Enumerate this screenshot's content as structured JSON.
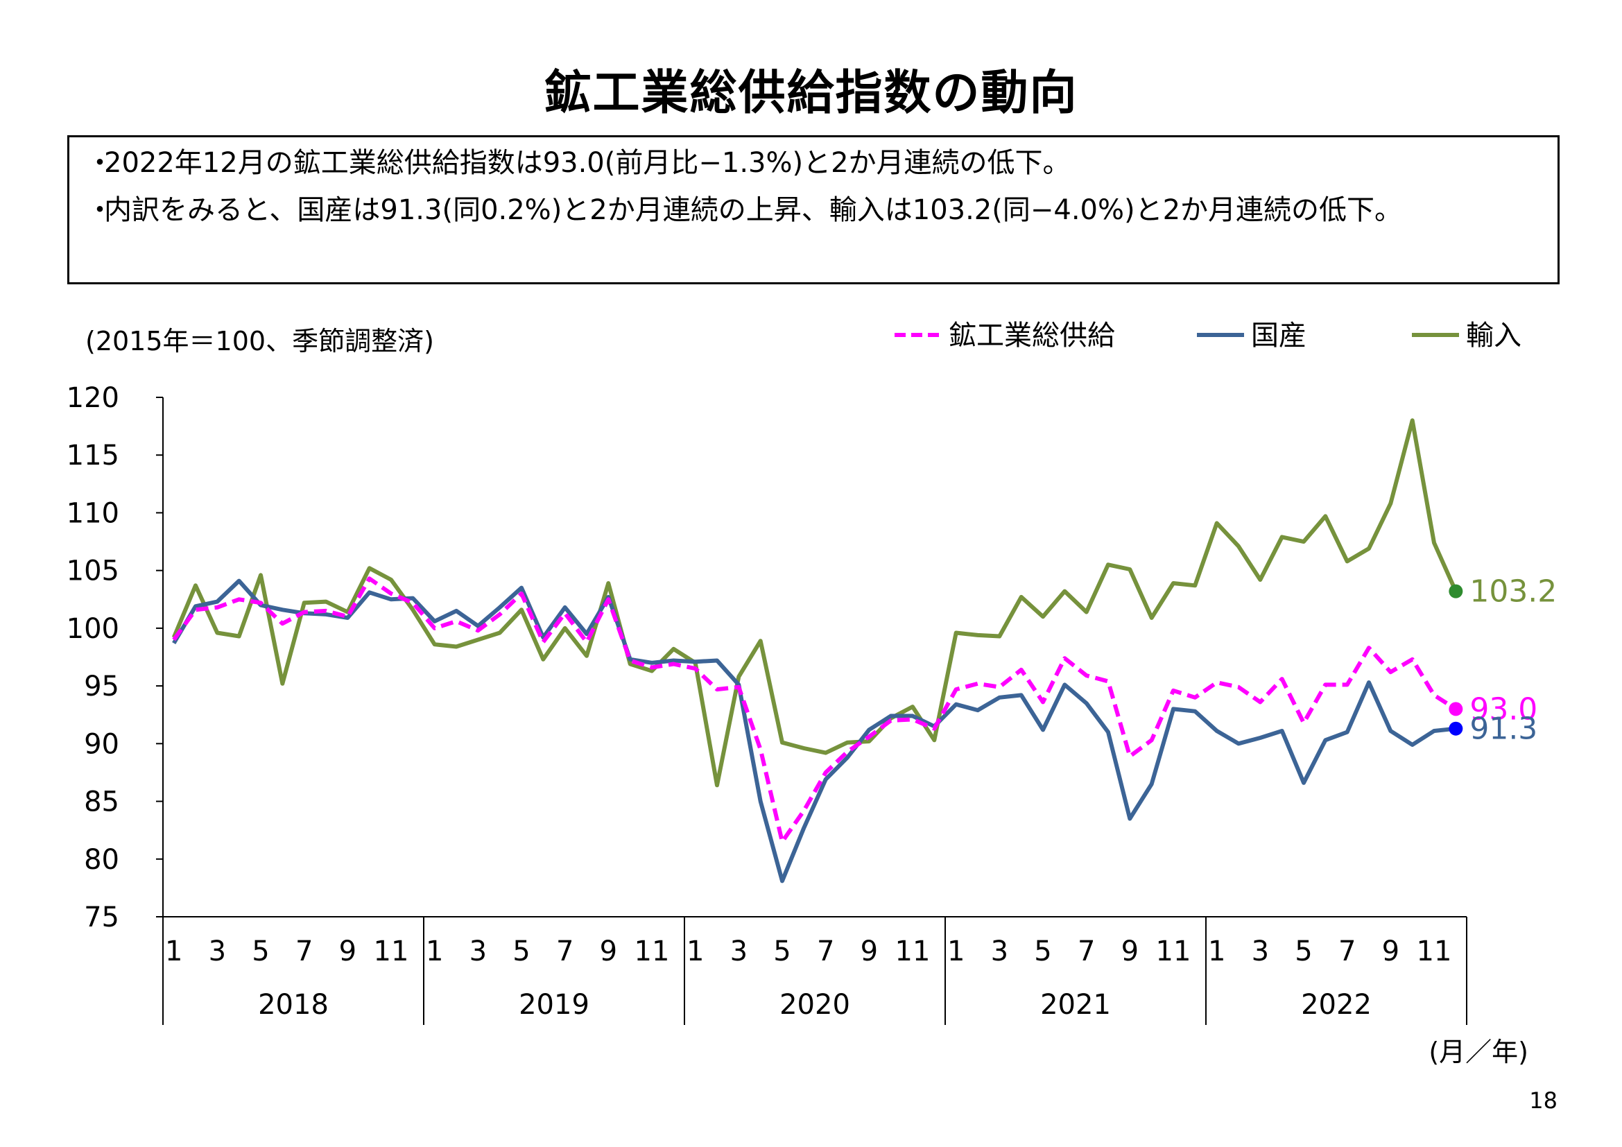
{
  "title": "鉱工業総供給指数の動向",
  "summary": [
    "2022年12月の鉱工業総供給指数は93.0(前月比−1.3%)と2か月連続の低下。",
    "内訳をみると、国産は91.3(同0.2%)と2か月連続の上昇、輸入は103.2(同−4.0%)と2か月連続の低下。"
  ],
  "bullet_char": "・",
  "page_number": "18",
  "chart_data": {
    "type": "line",
    "unit_note": "(2015年＝100、季節調整済)",
    "axis_unit_label": "(月／年)",
    "ylim": [
      75,
      120
    ],
    "yticks": [
      75,
      80,
      85,
      90,
      95,
      100,
      105,
      110,
      115,
      120
    ],
    "month_ticks": [
      "1",
      "3",
      "5",
      "7",
      "9",
      "11"
    ],
    "years": [
      "2018",
      "2019",
      "2020",
      "2021",
      "2022"
    ],
    "grid": false,
    "legend_position": "top-right",
    "series": [
      {
        "name": "鉱工業総供給",
        "color": "#ff00ff",
        "dash": true,
        "end_label": "93.0",
        "values": [
          99.0,
          101.6,
          101.8,
          102.5,
          102.2,
          100.4,
          101.4,
          101.5,
          101.0,
          104.3,
          103.0,
          102.2,
          100.0,
          100.6,
          99.8,
          101.2,
          103.0,
          98.8,
          101.3,
          98.8,
          102.5,
          97.2,
          96.6,
          96.9,
          96.5,
          94.7,
          94.9,
          89.5,
          81.5,
          84.2,
          87.5,
          89.3,
          90.6,
          92.0,
          92.1,
          91.3,
          94.7,
          95.2,
          94.9,
          96.4,
          93.6,
          97.4,
          95.9,
          95.4,
          88.9,
          90.3,
          94.6,
          94.0,
          95.3,
          94.9,
          93.6,
          95.6,
          91.8,
          95.1,
          95.1,
          98.3,
          96.2,
          97.3,
          94.2,
          93.0
        ]
      },
      {
        "name": "国産",
        "color": "#3c6496",
        "dash": false,
        "end_label": "91.3",
        "values": [
          98.7,
          101.9,
          102.3,
          104.1,
          102.0,
          101.6,
          101.3,
          101.2,
          100.9,
          103.1,
          102.5,
          102.6,
          100.6,
          101.5,
          100.2,
          101.8,
          103.5,
          99.2,
          101.8,
          99.5,
          102.7,
          97.3,
          97.0,
          97.2,
          97.1,
          97.2,
          95.1,
          85.0,
          78.1,
          82.7,
          86.9,
          88.8,
          91.2,
          92.4,
          92.4,
          91.5,
          93.4,
          92.9,
          94.0,
          94.2,
          91.2,
          95.1,
          93.5,
          91.0,
          83.5,
          86.5,
          93.0,
          92.8,
          91.1,
          90.0,
          90.5,
          91.1,
          86.6,
          90.3,
          91.0,
          95.3,
          91.1,
          89.9,
          91.1,
          91.3
        ]
      },
      {
        "name": "輸入",
        "color": "#76923c",
        "dash": false,
        "end_label": "103.2",
        "values": [
          99.2,
          103.7,
          99.6,
          99.3,
          104.6,
          95.2,
          102.2,
          102.3,
          101.4,
          105.2,
          104.2,
          101.6,
          98.6,
          98.4,
          99.0,
          99.6,
          101.6,
          97.3,
          100.0,
          97.6,
          103.9,
          96.9,
          96.3,
          98.2,
          97.0,
          86.4,
          95.8,
          98.9,
          90.1,
          89.6,
          89.2,
          90.1,
          90.2,
          92.2,
          93.2,
          90.3,
          99.6,
          99.4,
          99.3,
          102.7,
          101.0,
          103.2,
          101.4,
          105.5,
          105.1,
          100.9,
          103.9,
          103.7,
          109.1,
          107.1,
          104.2,
          107.9,
          107.5,
          109.7,
          105.8,
          106.9,
          110.8,
          118.0,
          107.4,
          103.2
        ]
      }
    ]
  }
}
